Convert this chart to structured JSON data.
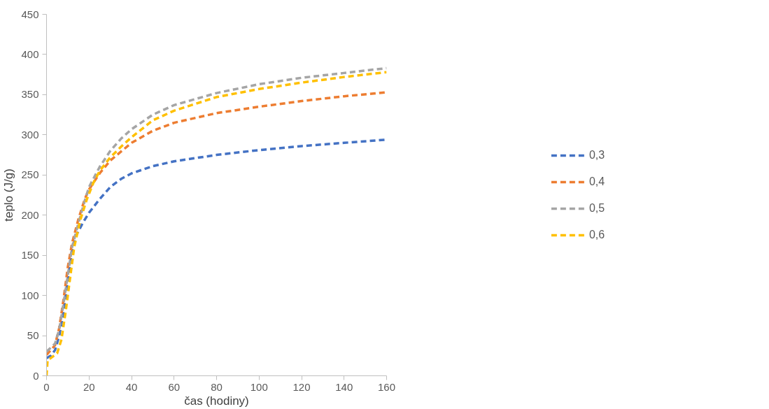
{
  "chart_data": {
    "type": "line",
    "xlabel": "čas (hodiny)",
    "ylabel": "teplo (J/g)",
    "xlim": [
      0,
      160
    ],
    "ylim": [
      0,
      450
    ],
    "xticks": [
      0,
      20,
      40,
      60,
      80,
      100,
      120,
      140,
      160
    ],
    "yticks": [
      0,
      50,
      100,
      150,
      200,
      250,
      300,
      350,
      400,
      450
    ],
    "grid": false,
    "legend": "right",
    "line_style": "dashed",
    "marker": "none",
    "series": [
      {
        "name": "0,3",
        "color": "#4472c4",
        "x": [
          0,
          2,
          4,
          6,
          8,
          10,
          12,
          14,
          17,
          20,
          25,
          30,
          35,
          40,
          50,
          60,
          80,
          100,
          120,
          140,
          160
        ],
        "values": [
          22,
          25,
          32,
          50,
          80,
          120,
          155,
          175,
          190,
          203,
          220,
          235,
          245,
          252,
          261,
          267,
          275,
          281,
          286,
          290,
          294
        ]
      },
      {
        "name": "0,4",
        "color": "#ed7d31",
        "x": [
          0,
          2,
          4,
          6,
          8,
          10,
          12,
          15,
          18,
          20,
          25,
          30,
          35,
          40,
          50,
          60,
          80,
          100,
          120,
          140,
          160
        ],
        "values": [
          26,
          32,
          38,
          60,
          95,
          135,
          165,
          195,
          220,
          232,
          252,
          268,
          279,
          290,
          305,
          315,
          327,
          335,
          342,
          348,
          353
        ]
      },
      {
        "name": "0,5",
        "color": "#a5a5a5",
        "x": [
          0,
          2,
          4,
          6,
          8,
          10,
          12,
          15,
          18,
          20,
          25,
          30,
          35,
          40,
          50,
          60,
          80,
          100,
          120,
          140,
          160
        ],
        "values": [
          30,
          35,
          40,
          58,
          90,
          125,
          160,
          190,
          218,
          235,
          260,
          280,
          295,
          307,
          325,
          337,
          352,
          363,
          371,
          377,
          383
        ]
      },
      {
        "name": "0,6",
        "color": "#ffc000",
        "x": [
          0,
          0.5,
          2,
          5,
          7,
          9,
          11,
          13,
          16,
          19,
          22,
          25,
          30,
          35,
          40,
          50,
          60,
          80,
          100,
          120,
          140,
          160
        ],
        "values": [
          0,
          20,
          22,
          28,
          45,
          80,
          120,
          160,
          195,
          220,
          240,
          255,
          272,
          285,
          297,
          318,
          330,
          347,
          357,
          365,
          372,
          378
        ]
      }
    ]
  }
}
